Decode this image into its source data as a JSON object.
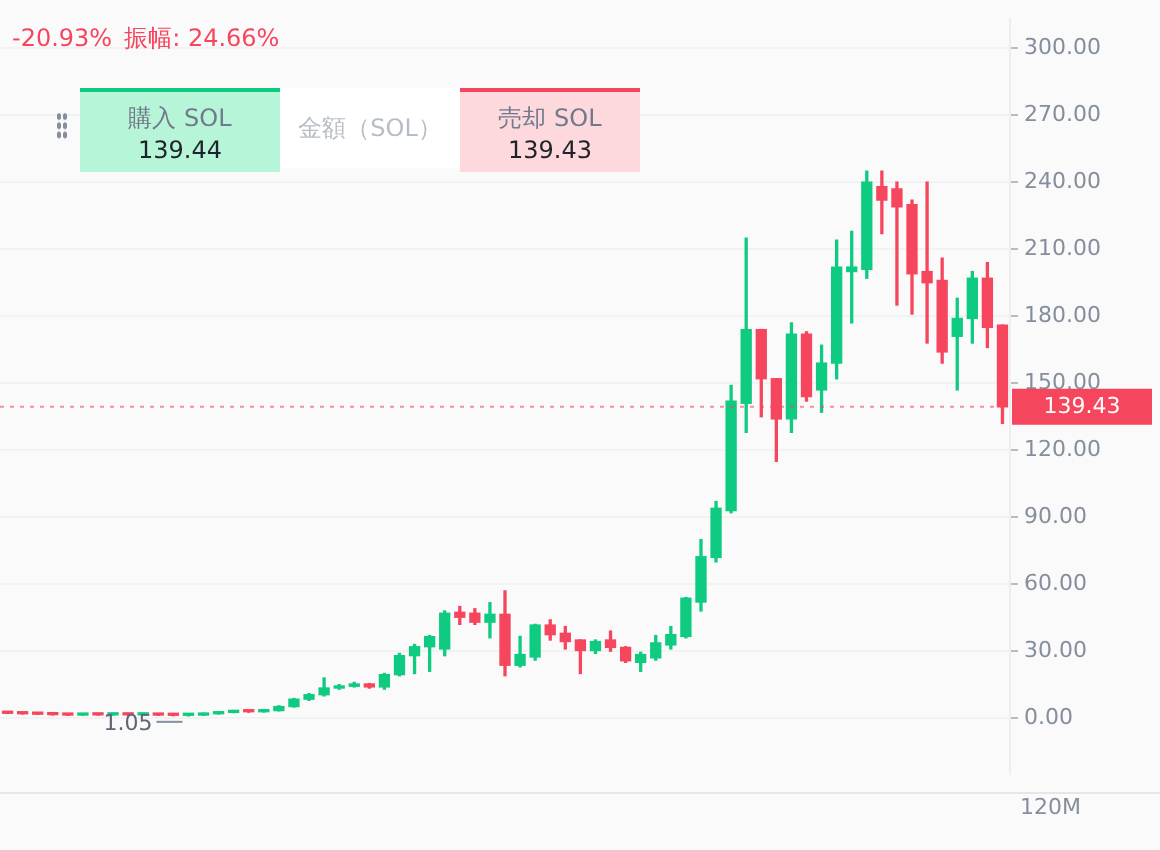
{
  "chart_data": {
    "type": "candlestick",
    "categories": [
      null,
      null,
      null,
      null,
      null,
      null,
      null,
      null,
      null,
      null,
      null,
      null,
      null,
      null,
      null,
      null,
      null,
      null,
      null,
      null,
      null,
      null,
      null,
      null,
      null,
      null,
      null,
      null,
      null,
      null,
      null,
      null,
      null,
      null,
      null,
      null,
      null,
      null,
      null,
      null,
      null,
      null,
      null,
      null,
      null,
      null,
      null,
      null,
      null,
      null,
      null,
      null,
      null,
      null,
      null,
      null,
      null,
      null,
      null,
      null,
      null,
      null,
      null,
      null,
      null,
      null,
      null
    ],
    "ohlc": [
      [
        2.4,
        2.6,
        2.1,
        2.2
      ],
      [
        2.2,
        2.4,
        1.9,
        2.0
      ],
      [
        2.0,
        2.2,
        1.7,
        1.8
      ],
      [
        1.8,
        2.0,
        1.5,
        1.6
      ],
      [
        1.6,
        1.8,
        1.3,
        1.4
      ],
      [
        1.4,
        1.9,
        1.3,
        1.8
      ],
      [
        1.8,
        2.0,
        1.4,
        1.5
      ],
      [
        1.5,
        1.9,
        1.4,
        1.8
      ],
      [
        1.8,
        2.0,
        1.4,
        1.5
      ],
      [
        1.5,
        1.8,
        1.3,
        1.7
      ],
      [
        1.7,
        1.8,
        1.3,
        1.4
      ],
      [
        1.4,
        1.6,
        1.1,
        1.3
      ],
      [
        1.3,
        1.5,
        1.05,
        1.4
      ],
      [
        1.4,
        2.2,
        1.3,
        2.0
      ],
      [
        2.0,
        2.8,
        1.9,
        2.6
      ],
      [
        2.6,
        3.4,
        2.5,
        3.2
      ],
      [
        3.2,
        3.5,
        2.7,
        2.9
      ],
      [
        2.9,
        3.6,
        2.8,
        3.4
      ],
      [
        3.4,
        5.5,
        3.3,
        5.2
      ],
      [
        5.2,
        8.8,
        5.0,
        8.5
      ],
      [
        8.5,
        11,
        8,
        10.5
      ],
      [
        10.5,
        18,
        10,
        13.5
      ],
      [
        13.5,
        15,
        13,
        14.3
      ],
      [
        14.3,
        16,
        14,
        15.3
      ],
      [
        15.3,
        15.5,
        13.5,
        14
      ],
      [
        14,
        20,
        13,
        19.5
      ],
      [
        19.5,
        29,
        19,
        28
      ],
      [
        28,
        33,
        20,
        32
      ],
      [
        32,
        37,
        21,
        36.5
      ],
      [
        31,
        48,
        28,
        47
      ],
      [
        47.4,
        50,
        42,
        45.2
      ],
      [
        47,
        49,
        42,
        43
      ],
      [
        43,
        51.7,
        36,
        46.5
      ],
      [
        46.5,
        57,
        19,
        23.7
      ],
      [
        23.7,
        36.6,
        23,
        28.5
      ],
      [
        27.4,
        42,
        26,
        41.7
      ],
      [
        41.7,
        44,
        35,
        37.4
      ],
      [
        38,
        41,
        31,
        34.3
      ],
      [
        35,
        35,
        20,
        30.3
      ],
      [
        30.3,
        35,
        29,
        34.3
      ],
      [
        35,
        39,
        30,
        31.7
      ],
      [
        31.7,
        32,
        25,
        25.7
      ],
      [
        25,
        29.5,
        21,
        28.5
      ],
      [
        27,
        37,
        26,
        33.7
      ],
      [
        32.8,
        41,
        31,
        37.4
      ],
      [
        36.6,
        54,
        36,
        53.7
      ],
      [
        52,
        80,
        48,
        72.3
      ],
      [
        72,
        97,
        70,
        94
      ],
      [
        93,
        149,
        92,
        142
      ],
      [
        141,
        215,
        128,
        174
      ],
      [
        174,
        174,
        135,
        152
      ],
      [
        152,
        152,
        115,
        134
      ],
      [
        134,
        177,
        128,
        172
      ],
      [
        172,
        173,
        142,
        144
      ],
      [
        147,
        167,
        137,
        159
      ],
      [
        159,
        214,
        152,
        202
      ],
      [
        200,
        218,
        177,
        202
      ],
      [
        201,
        245,
        197,
        240
      ],
      [
        238,
        245,
        217,
        232
      ],
      [
        237,
        240,
        185,
        229
      ],
      [
        230,
        232,
        181,
        199
      ],
      [
        200,
        240,
        168,
        195
      ],
      [
        196,
        206,
        159,
        164
      ],
      [
        171,
        188,
        147,
        179
      ],
      [
        179,
        200,
        168,
        197
      ],
      [
        197,
        204,
        166,
        175
      ],
      [
        176,
        176,
        132,
        139.43
      ]
    ],
    "colors": [
      "#f6465d",
      "#f6465d",
      "#f6465d",
      "#f6465d",
      "#f6465d",
      "#0ecb81",
      "#f6465d",
      "#0ecb81",
      "#f6465d",
      "#0ecb81",
      "#f6465d",
      "#f6465d",
      "#0ecb81",
      "#0ecb81",
      "#0ecb81",
      "#0ecb81",
      "#f6465d",
      "#0ecb81",
      "#0ecb81",
      "#0ecb81",
      "#0ecb81",
      "#0ecb81",
      "#0ecb81",
      "#0ecb81",
      "#f6465d",
      "#0ecb81",
      "#0ecb81",
      "#0ecb81",
      "#0ecb81",
      "#0ecb81",
      "#f6465d",
      "#f6465d",
      "#0ecb81",
      "#f6465d",
      "#0ecb81",
      "#0ecb81",
      "#f6465d",
      "#f6465d",
      "#f6465d",
      "#0ecb81",
      "#f6465d",
      "#f6465d",
      "#0ecb81",
      "#0ecb81",
      "#0ecb81",
      "#0ecb81",
      "#0ecb81",
      "#0ecb81",
      "#0ecb81",
      "#0ecb81",
      "#f6465d",
      "#f6465d",
      "#0ecb81",
      "#f6465d",
      "#0ecb81",
      "#0ecb81",
      "#0ecb81",
      "#0ecb81",
      "#f6465d",
      "#f6465d",
      "#f6465d",
      "#f6465d",
      "#f6465d",
      "#0ecb81",
      "#0ecb81",
      "#f6465d",
      "#f6465d"
    ],
    "ylim": [
      -25,
      313
    ],
    "yticks": [
      {
        "value": 0,
        "label": "0.00"
      },
      {
        "value": 30,
        "label": "30.00"
      },
      {
        "value": 60,
        "label": "60.00"
      },
      {
        "value": 90,
        "label": "90.00"
      },
      {
        "value": 120,
        "label": "120.00"
      },
      {
        "value": 150,
        "label": "150.00"
      },
      {
        "value": 180,
        "label": "180.00"
      },
      {
        "value": 210,
        "label": "210.00"
      },
      {
        "value": 240,
        "label": "240.00"
      },
      {
        "value": 270,
        "label": "270.00"
      },
      {
        "value": 300,
        "label": "300.00"
      }
    ],
    "tick_labels": "y",
    "grid": "y",
    "ref_lines": [
      {
        "axis": "y",
        "value": 139.43,
        "label": "139.43",
        "color": "#f6465d"
      }
    ],
    "annotations": [
      "-20.93%",
      "振幅: 24.66%",
      "購入 SOL",
      "139.44",
      "金額（SOL）",
      "売却 SOL",
      "139.43",
      "120M",
      {
        "text": "1.05",
        "y": 1.05
      }
    ]
  }
}
